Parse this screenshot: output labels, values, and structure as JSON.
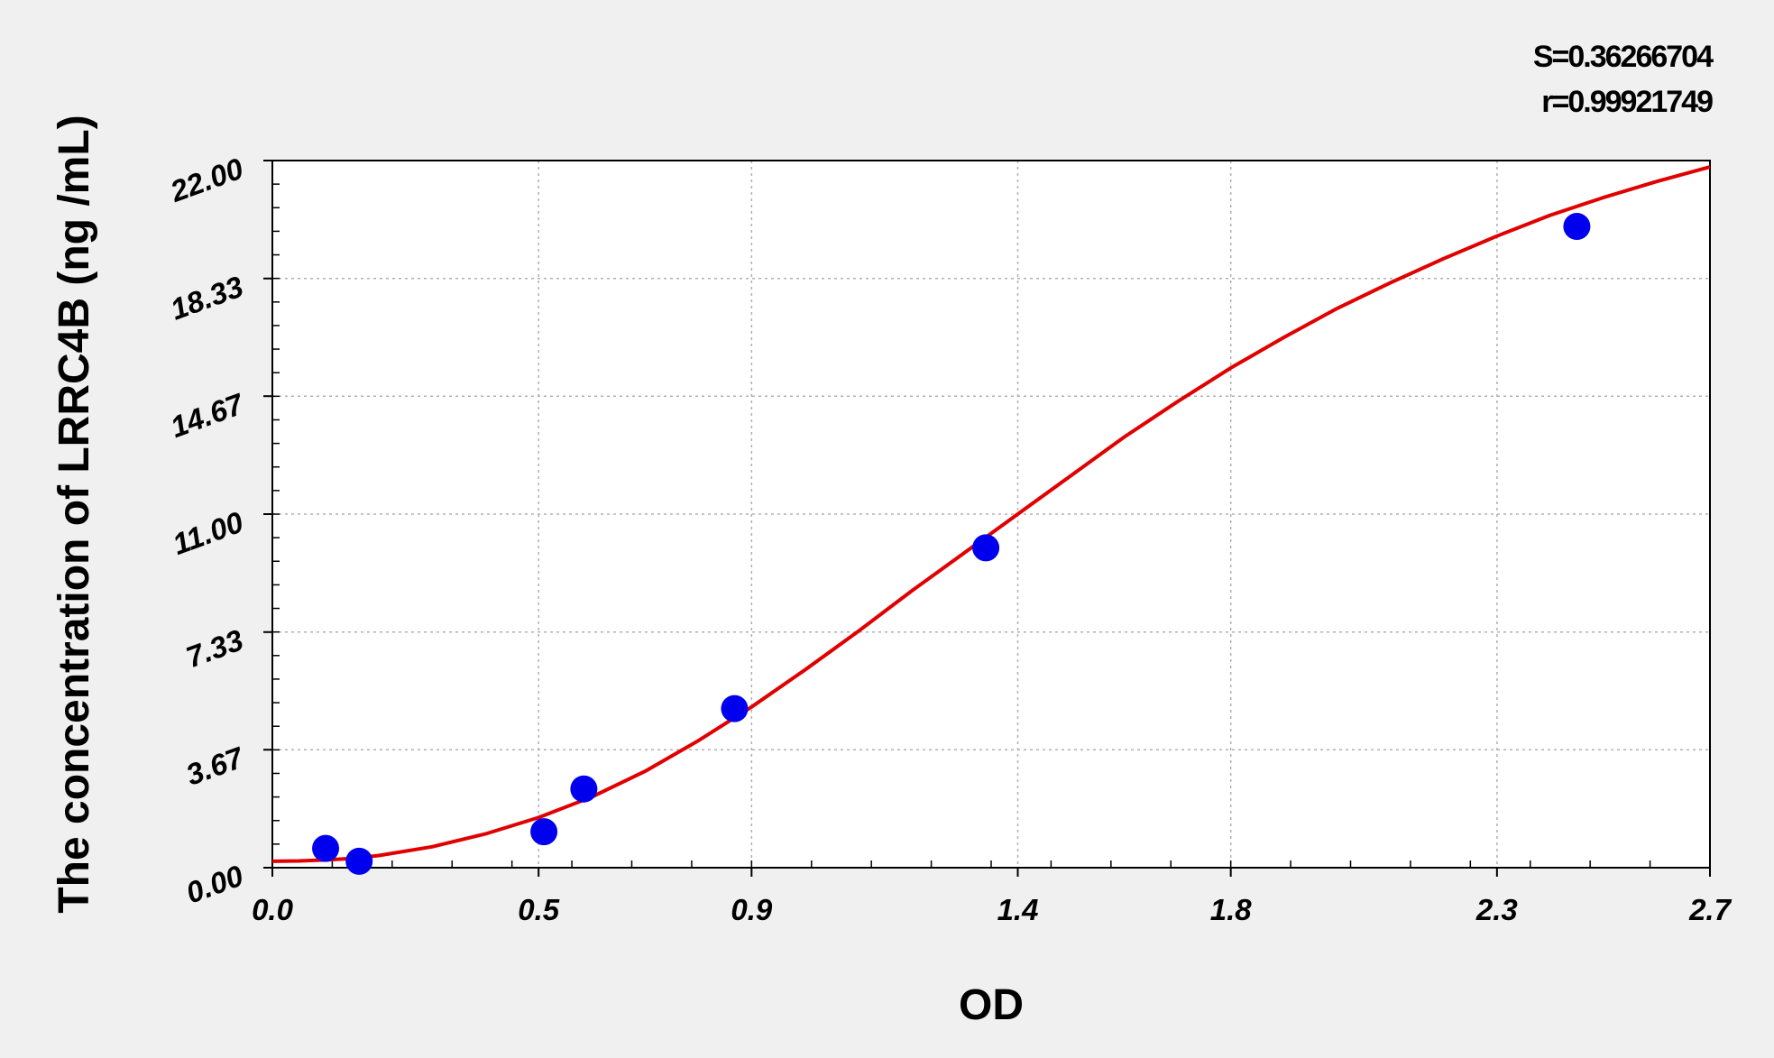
{
  "chart_data": {
    "type": "scatter",
    "xlabel": "OD",
    "ylabel": "The concentration of LRRC4B (ng /mL)",
    "stats": [
      "S=0.36266704",
      "r=0.99921749"
    ],
    "xlim": [
      0.0,
      2.7
    ],
    "ylim": [
      0.0,
      22.0
    ],
    "x_ticks": [
      0.0,
      0.5,
      0.9,
      1.4,
      1.8,
      2.3,
      2.7
    ],
    "x_tick_labels": [
      "0.0",
      "0.5",
      "0.9",
      "1.4",
      "1.8",
      "2.3",
      "2.7"
    ],
    "y_ticks": [
      0.0,
      3.67,
      7.33,
      11.0,
      14.67,
      18.33,
      22.0
    ],
    "y_tick_labels": [
      "0.00",
      "3.67",
      "7.33",
      "11.00",
      "14.67",
      "18.33",
      "22.00"
    ],
    "grid": true,
    "series": [
      {
        "type": "scatter",
        "color": "#0000ee",
        "x": [
          0.1,
          0.163,
          0.51,
          0.585,
          0.868,
          1.34,
          2.45
        ],
        "y": [
          0.6,
          0.2,
          1.12,
          2.45,
          4.95,
          9.95,
          19.95
        ]
      },
      {
        "type": "line",
        "color": "#e00000",
        "x": [
          0.0,
          0.05,
          0.1,
          0.15,
          0.2,
          0.3,
          0.4,
          0.5,
          0.6,
          0.7,
          0.8,
          0.9,
          1.0,
          1.1,
          1.2,
          1.3,
          1.4,
          1.5,
          1.6,
          1.7,
          1.8,
          1.9,
          2.0,
          2.1,
          2.2,
          2.3,
          2.4,
          2.5,
          2.6,
          2.7
        ],
        "y": [
          0.2,
          0.21,
          0.24,
          0.29,
          0.38,
          0.65,
          1.05,
          1.56,
          2.2,
          3.0,
          3.95,
          5.0,
          6.15,
          7.35,
          8.6,
          9.8,
          11.0,
          12.2,
          13.4,
          14.5,
          15.55,
          16.5,
          17.4,
          18.2,
          18.95,
          19.65,
          20.3,
          20.85,
          21.35,
          21.8
        ]
      }
    ]
  }
}
